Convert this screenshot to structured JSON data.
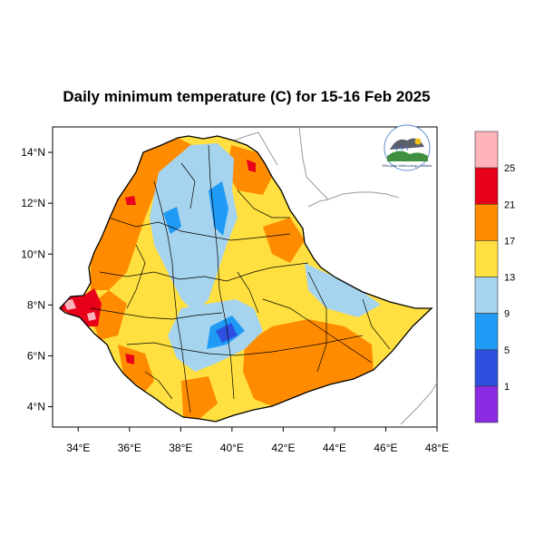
{
  "title": "Daily minimum temperature (C) for 15-16 Feb 2025",
  "map": {
    "lon_range": [
      33,
      48
    ],
    "lat_range": [
      3.2,
      15
    ],
    "x_ticks": [
      {
        "value": 34,
        "label": "34°E"
      },
      {
        "value": 36,
        "label": "36°E"
      },
      {
        "value": 38,
        "label": "38°E"
      },
      {
        "value": 40,
        "label": "40°E"
      },
      {
        "value": 42,
        "label": "42°E"
      },
      {
        "value": 44,
        "label": "44°E"
      },
      {
        "value": 46,
        "label": "46°E"
      },
      {
        "value": 48,
        "label": "48°E"
      }
    ],
    "y_ticks": [
      {
        "value": 14,
        "label": "14°N"
      },
      {
        "value": 12,
        "label": "12°N"
      },
      {
        "value": 10,
        "label": "10°N"
      },
      {
        "value": 8,
        "label": "8°N"
      },
      {
        "value": 6,
        "label": "6°N"
      },
      {
        "value": 4,
        "label": "4°N"
      }
    ],
    "region_shown": "Ethiopia",
    "dominant_colors": {
      "highlands": "#a6d3ee",
      "warm": "#ff8c00",
      "moderate": "#ffe040",
      "hot": "#e8001a"
    }
  },
  "colorbar": {
    "levels": [
      "25",
      "21",
      "17",
      "13",
      "9",
      "5",
      "1"
    ],
    "colors_top_to_bottom": [
      "#ffb3ba",
      "#e8001a",
      "#ff8c00",
      "#ffe040",
      "#a6d3ee",
      "#1f9bf5",
      "#2f4fe0",
      "#8a2be2"
    ]
  },
  "logo": {
    "icon": "ethiopian-meteorology-institute-logo"
  }
}
